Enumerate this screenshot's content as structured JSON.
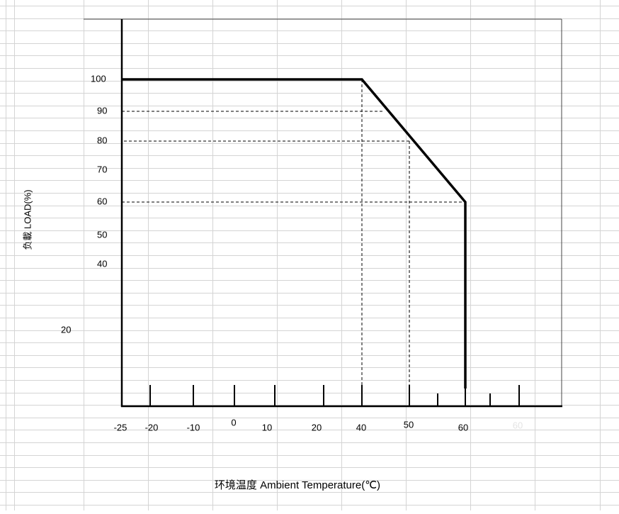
{
  "y_axis": {
    "label": "负載 LOAD(%)",
    "ticks": [
      "100",
      "90",
      "80",
      "70",
      "60",
      "50",
      "40",
      "20"
    ]
  },
  "x_axis": {
    "label": "环境温度  Ambient Temperature(℃)",
    "ticks": [
      "-25",
      "-20",
      "-10",
      "0",
      "10",
      "20",
      "40",
      "50",
      "60",
      "60"
    ]
  }
}
